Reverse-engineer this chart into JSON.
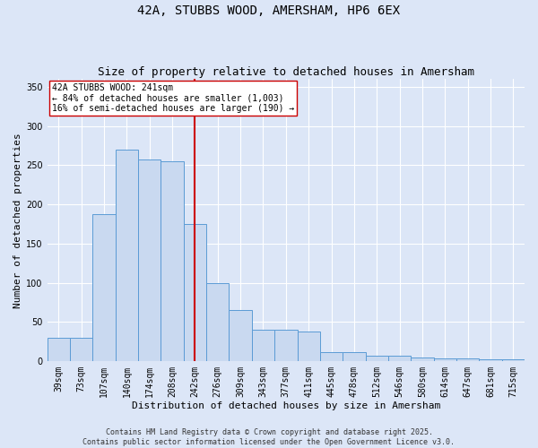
{
  "title_line1": "42A, STUBBS WOOD, AMERSHAM, HP6 6EX",
  "title_line2": "Size of property relative to detached houses in Amersham",
  "xlabel": "Distribution of detached houses by size in Amersham",
  "ylabel": "Number of detached properties",
  "bins": [
    "39sqm",
    "73sqm",
    "107sqm",
    "140sqm",
    "174sqm",
    "208sqm",
    "242sqm",
    "276sqm",
    "309sqm",
    "343sqm",
    "377sqm",
    "411sqm",
    "445sqm",
    "478sqm",
    "512sqm",
    "546sqm",
    "580sqm",
    "614sqm",
    "647sqm",
    "681sqm",
    "715sqm"
  ],
  "values": [
    30,
    30,
    188,
    270,
    257,
    255,
    175,
    100,
    65,
    40,
    40,
    38,
    12,
    12,
    7,
    7,
    5,
    4,
    4,
    2,
    2
  ],
  "bar_color": "#c9d9f0",
  "bar_edge_color": "#5b9bd5",
  "property_line_index": 6,
  "property_label": "42A STUBBS WOOD: 241sqm",
  "annotation_line2": "← 84% of detached houses are smaller (1,003)",
  "annotation_line3": "16% of semi-detached houses are larger (190) →",
  "annotation_box_color": "#ffffff",
  "annotation_box_edge_color": "#cc0000",
  "line_color": "#cc0000",
  "background_color": "#dce6f7",
  "grid_color": "#ffffff",
  "footer_line1": "Contains HM Land Registry data © Crown copyright and database right 2025.",
  "footer_line2": "Contains public sector information licensed under the Open Government Licence v3.0.",
  "ylim": [
    0,
    360
  ],
  "yticks": [
    0,
    50,
    100,
    150,
    200,
    250,
    300,
    350
  ],
  "title_fontsize": 10,
  "subtitle_fontsize": 9,
  "axis_label_fontsize": 8,
  "tick_fontsize": 7,
  "annotation_fontsize": 7,
  "footer_fontsize": 6
}
